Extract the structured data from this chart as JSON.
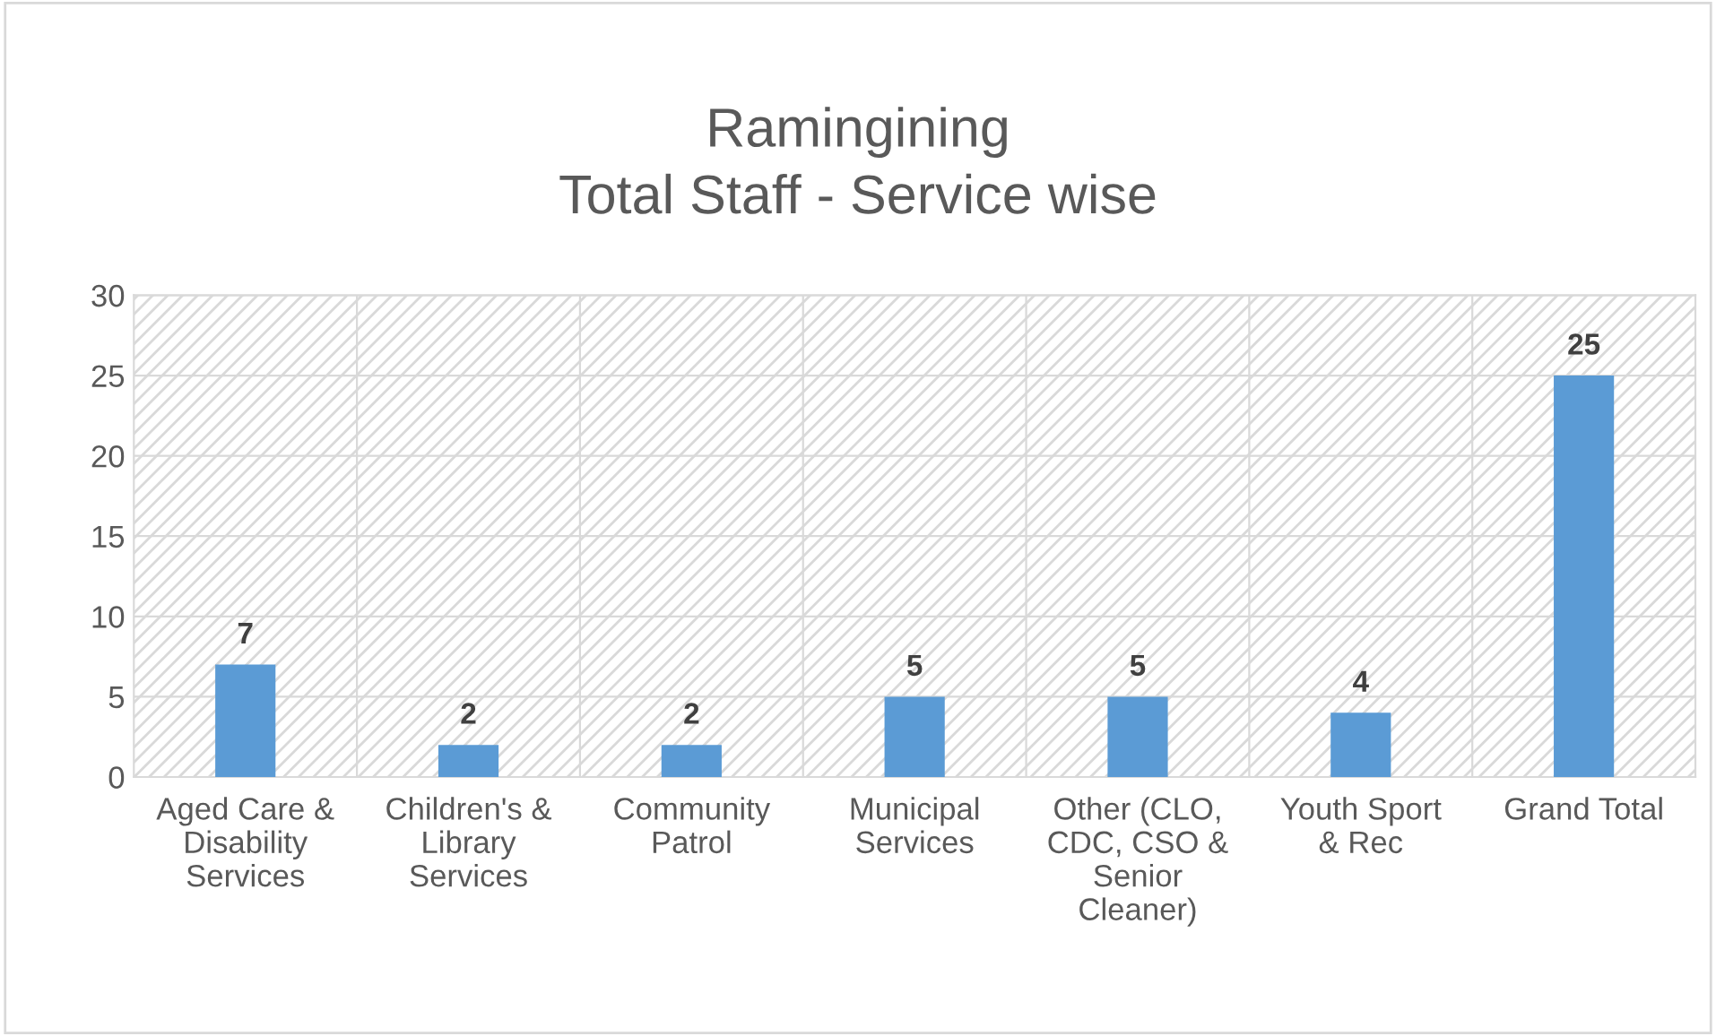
{
  "chart_data": {
    "type": "bar",
    "title": "Ramingining\nTotal Staff - Service wise",
    "categories": [
      "Aged Care & Disability Services",
      "Children's & Library Services",
      "Community Patrol",
      "Municipal Services",
      "Other (CLO, CDC, CSO & Senior Cleaner)",
      "Youth Sport & Rec",
      "Grand Total"
    ],
    "values": [
      7,
      2,
      2,
      5,
      5,
      4,
      25
    ],
    "color": "#5b9bd5",
    "ylim": [
      0,
      30
    ],
    "yticks": [
      0,
      5,
      10,
      15,
      20,
      25,
      30
    ],
    "grid": true,
    "data_labels": true,
    "legend": false
  }
}
